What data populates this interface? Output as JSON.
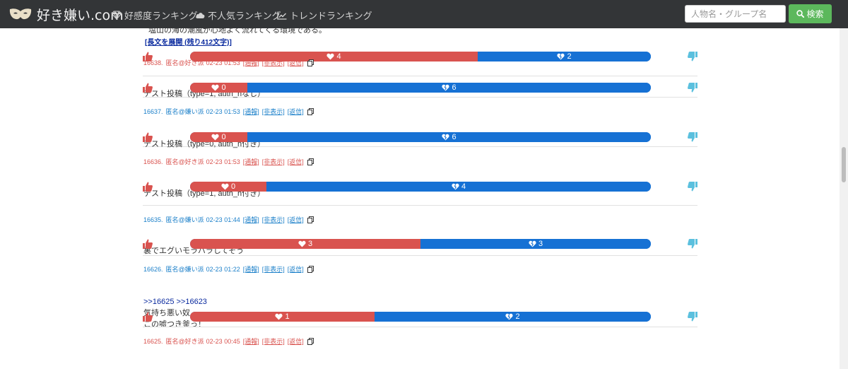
{
  "nav": {
    "logo_text": "好き嫌い.com",
    "links": [
      {
        "label": "好感度ランキング",
        "icon": "diamond-icon"
      },
      {
        "label": "不人気ランキング",
        "icon": "cloud-icon"
      },
      {
        "label": "トレンドランキング",
        "icon": "chart-line-icon"
      }
    ],
    "search_placeholder": "人物名・グループ名",
    "search_button": "検索"
  },
  "top_fragment": {
    "text": "塩山の海の潮風が心地よく流れてくる環境である。",
    "expand_link": "[長文を展開 (残り412文字)]",
    "likes": 4,
    "dislikes": 2
  },
  "comments": [
    {
      "no": "16638.",
      "name": "匿名@好き派",
      "date": "02-23 01:53",
      "type": "pro",
      "actions": [
        "[通報]",
        "[非表示]",
        "[返信]"
      ],
      "anchor": "",
      "lines": [
        "テスト投稿（type=1, auth_hなし）"
      ],
      "likes": 0,
      "dislikes": 6
    },
    {
      "no": "16637.",
      "name": "匿名@嫌い派",
      "date": "02-23 01:53",
      "type": "con",
      "actions": [
        "[通報]",
        "[非表示]",
        "[返信]"
      ],
      "anchor": "",
      "lines": [
        "テスト投稿（type=0, auth_h付き）"
      ],
      "likes": 0,
      "dislikes": 6
    },
    {
      "no": "16636.",
      "name": "匿名@好き派",
      "date": "02-23 01:53",
      "type": "pro",
      "actions": [
        "[通報]",
        "[非表示]",
        "[返信]"
      ],
      "anchor": "",
      "lines": [
        "テスト投稿（type=1, auth_h付き）"
      ],
      "likes": 0,
      "dislikes": 4
    },
    {
      "no": "16635.",
      "name": "匿名@嫌い派",
      "date": "02-23 01:44",
      "type": "con",
      "actions": [
        "[通報]",
        "[非表示]",
        "[返信]"
      ],
      "anchor": "",
      "lines": [
        "裏でエグいモラハラしてそう"
      ],
      "likes": 3,
      "dislikes": 3
    },
    {
      "no": "16626.",
      "name": "匿名@嫌い派",
      "date": "02-23 01:22",
      "type": "con",
      "actions": [
        "[通報]",
        "[非表示]",
        "[返信]"
      ],
      "anchor": ">>16625 >>16623",
      "lines": [
        "気持ち悪い奴...",
        "この嘘つき釜っ！"
      ],
      "likes": 1,
      "dislikes": 2
    },
    {
      "no": "16625.",
      "name": "匿名@好き派",
      "date": "02-23 00:45",
      "type": "pro",
      "actions": [
        "[通報]",
        "[非表示]",
        "[返信]"
      ],
      "anchor": "",
      "lines": [],
      "likes": null,
      "dislikes": null
    }
  ],
  "colors": {
    "navbar": "#333537",
    "like": "#d9534f",
    "dislike": "#1671d4",
    "pro_text": "#d9534f",
    "con_text": "#1a7fc9",
    "search_button": "#5cb85c",
    "vote_up": "#d9534f",
    "vote_down": "#5bc0de"
  }
}
